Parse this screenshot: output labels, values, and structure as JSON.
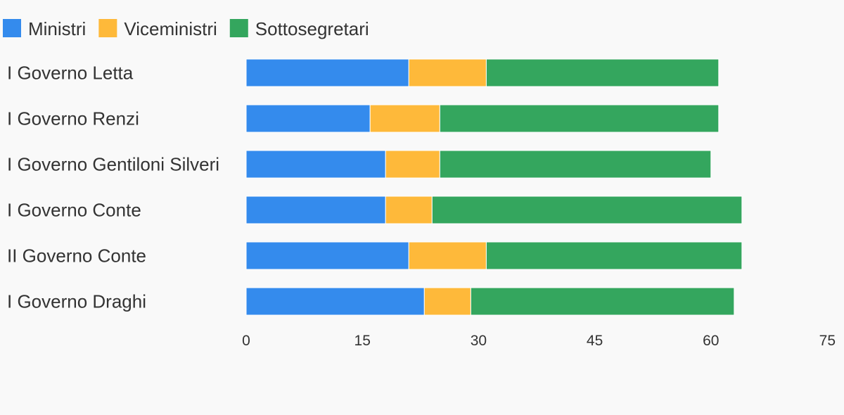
{
  "chart_data": {
    "type": "bar",
    "orientation": "horizontal",
    "stacked": true,
    "categories": [
      "I Governo Letta",
      "I Governo Renzi",
      "I Governo Gentiloni Silveri",
      "I Governo Conte",
      "II Governo Conte",
      "I Governo Draghi"
    ],
    "series": [
      {
        "name": "Ministri",
        "color": "#348bed",
        "values": [
          21,
          16,
          18,
          18,
          21,
          23
        ]
      },
      {
        "name": "Viceministri",
        "color": "#feb93a",
        "values": [
          10,
          9,
          7,
          6,
          10,
          6
        ]
      },
      {
        "name": "Sottosegretari",
        "color": "#34a65e",
        "values": [
          30,
          36,
          35,
          40,
          33,
          34
        ]
      }
    ],
    "xlim": [
      0,
      75
    ],
    "xticks": [
      0,
      15,
      30,
      45,
      60,
      75
    ],
    "legend_position": "top-left",
    "grid": false
  }
}
